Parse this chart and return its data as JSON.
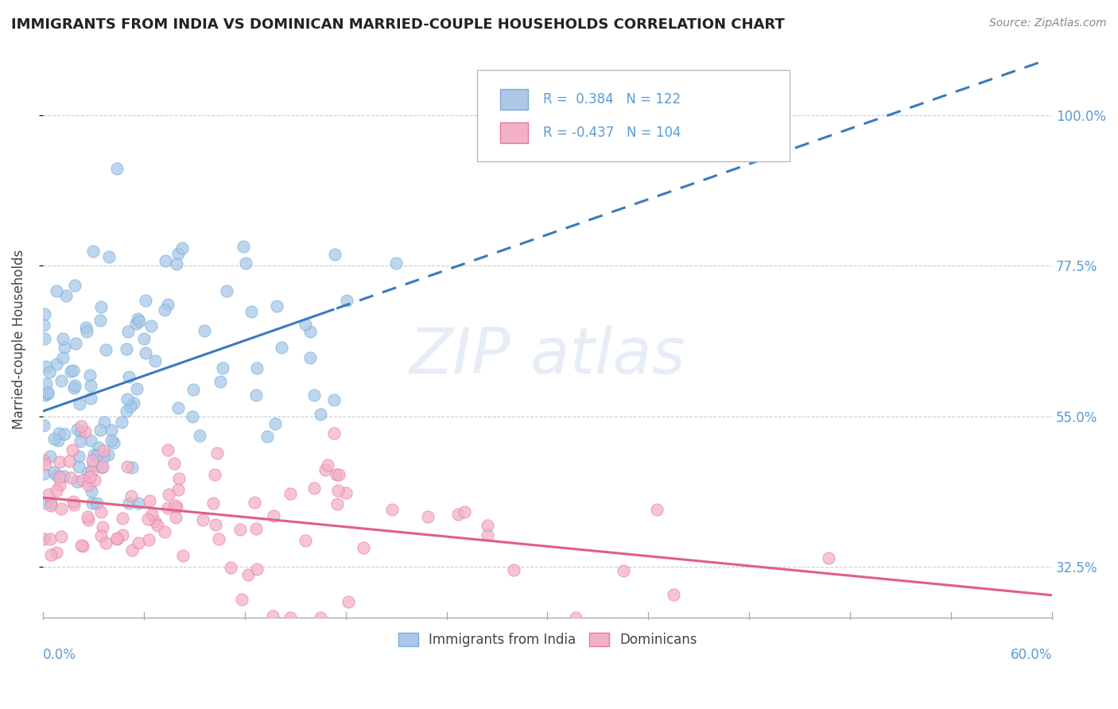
{
  "title": "IMMIGRANTS FROM INDIA VS DOMINICAN MARRIED-COUPLE HOUSEHOLDS CORRELATION CHART",
  "source": "Source: ZipAtlas.com",
  "ylabel": "Married-couple Households",
  "xlim": [
    0.0,
    60.0
  ],
  "ylim": [
    25.0,
    108.0
  ],
  "yticks": [
    32.5,
    55.0,
    77.5,
    100.0
  ],
  "ytick_labels": [
    "32.5%",
    "55.0%",
    "77.5%",
    "100.0%"
  ],
  "legend_label1": "Immigrants from India",
  "legend_label2": "Dominicans",
  "blue_scatter_color": "#a8c8e8",
  "blue_edge_color": "#6baed6",
  "pink_scatter_color": "#f4b0c8",
  "pink_edge_color": "#e87898",
  "trend_blue_solid": "#3a7abf",
  "trend_blue_dash": "#3a7abf",
  "trend_pink": "#e06080",
  "R_blue": 0.384,
  "N_blue": 122,
  "R_pink": -0.437,
  "N_pink": 104,
  "background_color": "#ffffff",
  "grid_color": "#cccccc",
  "legend_blue_fill": "#aec6e8",
  "legend_blue_edge": "#7aaed6",
  "legend_pink_fill": "#f4b0c8",
  "legend_pink_edge": "#e87898",
  "axis_color": "#5b9bd5",
  "text_color": "#444444",
  "title_color": "#222222",
  "source_color": "#888888"
}
